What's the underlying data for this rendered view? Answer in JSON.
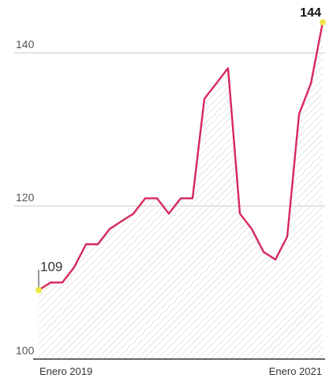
{
  "chart_data": {
    "type": "area",
    "title": "",
    "xlabel": "",
    "ylabel": "",
    "ylim": [
      100,
      145
    ],
    "yticks": [
      100,
      120,
      140
    ],
    "grid": true,
    "x_labels": {
      "start": "Enero 2019",
      "end": "Enero 2021"
    },
    "series": [
      {
        "values": [
          109,
          110,
          110,
          112,
          115,
          115,
          117,
          118,
          119,
          121,
          121,
          119,
          121,
          121,
          134,
          136,
          138,
          119,
          117,
          114,
          113,
          116,
          132,
          136,
          144
        ]
      }
    ],
    "annotations": {
      "first": "109",
      "last": "144"
    },
    "colors": {
      "line": "#d6285a",
      "marker": "#f0e64a",
      "area_hatch": "#e4e4e4",
      "grid": "#dcdcdc"
    }
  }
}
